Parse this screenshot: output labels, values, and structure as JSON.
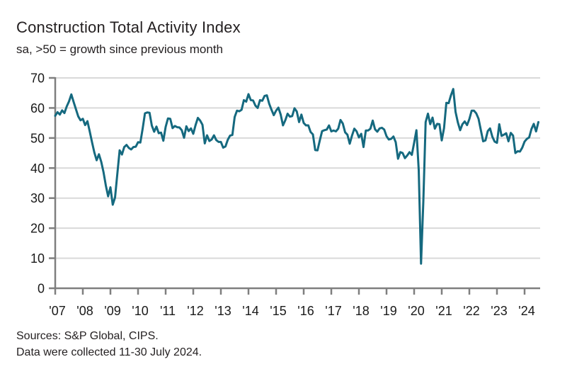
{
  "header": {
    "title": "Construction Total Activity Index",
    "subtitle": "sa, >50 = growth since previous month"
  },
  "footer": {
    "sources": "Sources: S&P Global, CIPS.",
    "collection_note": "Data were collected 11-30 July 2024."
  },
  "colors": {
    "line": "#15697f",
    "grid": "#d9d9d9",
    "axis": "#7f7f7f",
    "text": "#231f20",
    "tick_label": "#1a1a1a"
  },
  "chart_data": {
    "type": "line",
    "title": "Construction Total Activity Index",
    "subtitle": "sa, >50 = growth since previous month",
    "frequency": "monthly",
    "x_start": "2007-01",
    "x_end": "2024-07",
    "x_tick_labels": [
      "'07",
      "'08",
      "'09",
      "'10",
      "'11",
      "'12",
      "'13",
      "'14",
      "'15",
      "'16",
      "'17",
      "'18",
      "'19",
      "'20",
      "'21",
      "'22",
      "'23",
      "'24"
    ],
    "y_ticks": [
      0,
      10,
      20,
      30,
      40,
      50,
      60,
      70
    ],
    "ylim": [
      0,
      70
    ],
    "grid": "horizontal",
    "legend": "none",
    "series": [
      {
        "name": "Construction Total Activity Index",
        "values": [
          57.4,
          58.6,
          57.8,
          59.2,
          58.3,
          60.5,
          62.2,
          64.5,
          62.0,
          59.6,
          57.2,
          55.9,
          56.4,
          54.3,
          55.6,
          52.2,
          48.6,
          45.2,
          42.6,
          44.6,
          42.1,
          38.6,
          34.2,
          30.6,
          33.6,
          27.8,
          30.2,
          38.1,
          45.9,
          44.5,
          47.0,
          47.7,
          46.7,
          46.2,
          47.0,
          47.1,
          48.6,
          48.5,
          53.1,
          58.2,
          58.5,
          58.4,
          54.1,
          52.1,
          53.8,
          51.6,
          51.8,
          49.1,
          53.7,
          56.5,
          56.4,
          53.3,
          54.0,
          53.6,
          53.5,
          52.6,
          50.1,
          53.9,
          52.3,
          53.2,
          51.4,
          54.3,
          56.7,
          55.8,
          54.4,
          48.2,
          50.9,
          49.0,
          49.5,
          50.9,
          49.3,
          48.7,
          48.7,
          46.8,
          47.2,
          49.4,
          50.8,
          51.0,
          57.0,
          59.1,
          58.9,
          59.4,
          62.6,
          62.1,
          64.6,
          62.6,
          62.5,
          60.8,
          60.0,
          62.6,
          62.4,
          64.0,
          64.2,
          61.4,
          59.4,
          57.6,
          59.1,
          60.1,
          57.8,
          54.2,
          55.9,
          58.1,
          57.1,
          57.3,
          59.9,
          58.8,
          55.3,
          57.8,
          55.0,
          54.2,
          54.2,
          52.0,
          51.2,
          46.0,
          45.9,
          49.2,
          52.3,
          52.6,
          52.8,
          54.2,
          52.2,
          52.5,
          52.2,
          53.1,
          56.0,
          54.8,
          51.9,
          51.1,
          48.1,
          50.8,
          53.1,
          52.2,
          50.2,
          51.4,
          47.0,
          52.5,
          52.5,
          53.1,
          55.8,
          52.9,
          52.1,
          53.2,
          53.4,
          52.8,
          50.6,
          49.5,
          49.7,
          50.5,
          48.6,
          43.1,
          45.3,
          45.0,
          43.3,
          44.2,
          45.3,
          44.4,
          48.4,
          52.6,
          39.3,
          8.2,
          28.9,
          55.3,
          58.1,
          54.6,
          56.8,
          53.1,
          54.7,
          54.6,
          49.2,
          53.3,
          61.7,
          61.6,
          64.2,
          66.3,
          58.7,
          55.2,
          52.6,
          54.6,
          55.5,
          54.3,
          56.3,
          59.1,
          59.1,
          58.2,
          56.4,
          52.6,
          48.9,
          49.2,
          52.3,
          53.2,
          50.4,
          48.8,
          48.4,
          54.6,
          50.7,
          51.1,
          51.6,
          48.9,
          51.7,
          50.8,
          45.0,
          45.6,
          45.5,
          46.8,
          48.8,
          49.7,
          50.2,
          53.0,
          54.7,
          52.2,
          55.3
        ]
      }
    ]
  }
}
